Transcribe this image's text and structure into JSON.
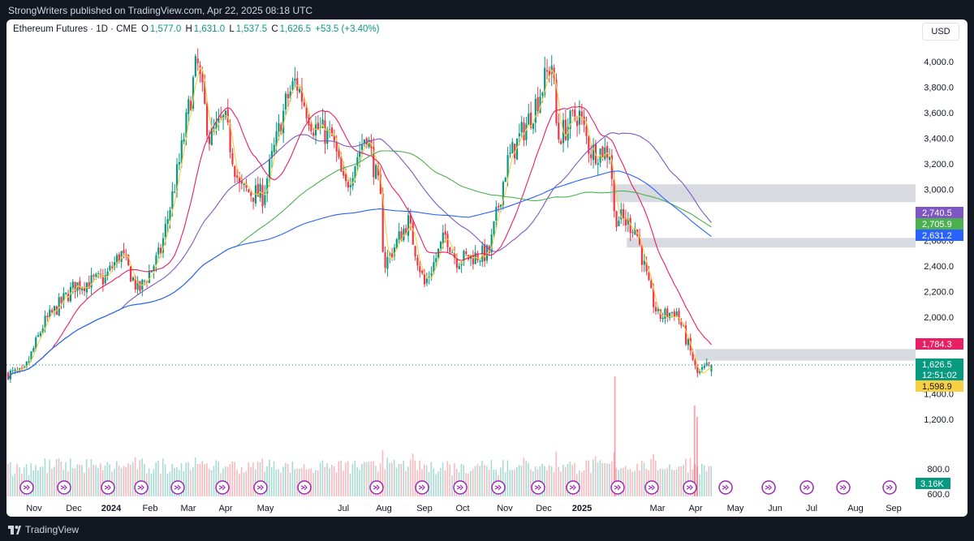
{
  "header": {
    "published": "StrongWriters published on TradingView.com, Apr 22, 2025 08:18 UTC"
  },
  "symbol": {
    "name": "Ethereum Futures · 1D · CME",
    "o_label": "O",
    "o": "1,577.0",
    "h_label": "H",
    "h": "1,631.0",
    "l_label": "L",
    "l": "1,537.5",
    "c_label": "C",
    "c": "1,626.5",
    "change": "+53.5 (+3.40%)"
  },
  "currency": "USD",
  "footer": {
    "brand": "TradingView"
  },
  "colors": {
    "up": "#089981",
    "down": "#f23645",
    "ma_fast": "#f7d046",
    "ma_20": "#e91e63",
    "ma_50": "#7e57c2",
    "ma_100": "#4caf50",
    "ma_200": "#2962ff",
    "zone": "#d1d4dc"
  },
  "chart_data": {
    "type": "candlestick",
    "title": "Ethereum Futures · 1D · CME",
    "ylabel": "USD",
    "ylim": [
      1400,
      4100
    ],
    "y_ticks": [
      1200,
      1400,
      1600,
      1800,
      2000,
      2200,
      2400,
      2600,
      2800,
      3000,
      3200,
      3400,
      3600,
      3800,
      4000
    ],
    "y_tick_labels": [
      "1,200.0",
      "1,400.0",
      "1,600.0",
      "1,800.0",
      "2,000.0",
      "2,200.0",
      "2,400.0",
      "2,600.0",
      "2,800.0",
      "3,000.0",
      "3,200.0",
      "3,400.0",
      "3,600.0",
      "3,800.0",
      "4,000.0"
    ],
    "volume_ticks": [
      "800.0",
      "600.0"
    ],
    "x_labels": [
      "Nov",
      "Dec",
      "2024",
      "Feb",
      "Mar",
      "Apr",
      "May",
      "Jul",
      "Aug",
      "Sep",
      "Oct",
      "Nov",
      "Dec",
      "2025",
      "Mar",
      "Apr",
      "May",
      "Jun",
      "Jul",
      "Aug",
      "Sep"
    ],
    "price_path": [
      [
        "2023-10-25",
        1560
      ],
      [
        "2023-11-10",
        1950
      ],
      [
        "2023-12-05",
        2250
      ],
      [
        "2023-12-28",
        2300
      ],
      [
        "2024-01-10",
        2500
      ],
      [
        "2024-01-24",
        2200
      ],
      [
        "2024-02-10",
        2500
      ],
      [
        "2024-02-25",
        3200
      ],
      [
        "2024-03-10",
        4000
      ],
      [
        "2024-03-20",
        3400
      ],
      [
        "2024-04-01",
        3550
      ],
      [
        "2024-04-13",
        3000
      ],
      [
        "2024-05-01",
        2950
      ],
      [
        "2024-05-20",
        3700
      ],
      [
        "2024-05-27",
        3850
      ],
      [
        "2024-06-10",
        3500
      ],
      [
        "2024-06-25",
        3400
      ],
      [
        "2024-07-05",
        3000
      ],
      [
        "2024-07-22",
        3450
      ],
      [
        "2024-08-02",
        2950
      ],
      [
        "2024-08-05",
        2400
      ],
      [
        "2024-08-24",
        2750
      ],
      [
        "2024-09-06",
        2250
      ],
      [
        "2024-09-23",
        2650
      ],
      [
        "2024-10-01",
        2450
      ],
      [
        "2024-10-27",
        2500
      ],
      [
        "2024-11-10",
        3200
      ],
      [
        "2024-11-30",
        3600
      ],
      [
        "2024-12-16",
        4000
      ],
      [
        "2024-12-20",
        3400
      ],
      [
        "2025-01-06",
        3600
      ],
      [
        "2025-01-15",
        3300
      ],
      [
        "2025-01-31",
        3300
      ],
      [
        "2025-02-03",
        2800
      ],
      [
        "2025-02-20",
        2700
      ],
      [
        "2025-03-03",
        2200
      ],
      [
        "2025-03-10",
        2000
      ],
      [
        "2025-03-24",
        2050
      ],
      [
        "2025-04-07",
        1650
      ],
      [
        "2025-04-09",
        1550
      ],
      [
        "2025-04-21",
        1626.5
      ]
    ],
    "ohlc_last": {
      "open": 1577.0,
      "high": 1631.0,
      "low": 1537.5,
      "close": 1626.5
    },
    "moving_averages": [
      {
        "name": "MA fast",
        "color": "#f7d046",
        "value": 1598.9
      },
      {
        "name": "MA 20",
        "color": "#e91e63",
        "value": 1784.3
      },
      {
        "name": "MA 50",
        "color": "#7e57c2",
        "value": 2740.5
      },
      {
        "name": "MA 100",
        "color": "#4caf50",
        "value": 2705.9
      },
      {
        "name": "MA 200",
        "color": "#2962ff",
        "value": 2631.2
      }
    ],
    "price_labels": [
      {
        "text": "1,784.3",
        "color": "#e91e63"
      },
      {
        "text": "2,740.5",
        "color": "#7e57c2"
      },
      {
        "text": "2,705.9",
        "color": "#4caf50"
      },
      {
        "text": "2,631.2",
        "color": "#2962ff"
      },
      {
        "text": "1,626.5",
        "color": "#089981"
      },
      {
        "text": "12:51:02",
        "color": "#089981"
      },
      {
        "text": "1,598.9",
        "color": "#f7d046"
      }
    ],
    "volume_label": "3.16K",
    "zones": [
      {
        "start": "2025-01-31",
        "from": 2900,
        "to": 3040
      },
      {
        "start": "2025-02-13",
        "from": 2545,
        "to": 2620
      },
      {
        "start": "2025-04-08",
        "from": 1660,
        "to": 1750
      }
    ],
    "current_price": 1626.5
  }
}
